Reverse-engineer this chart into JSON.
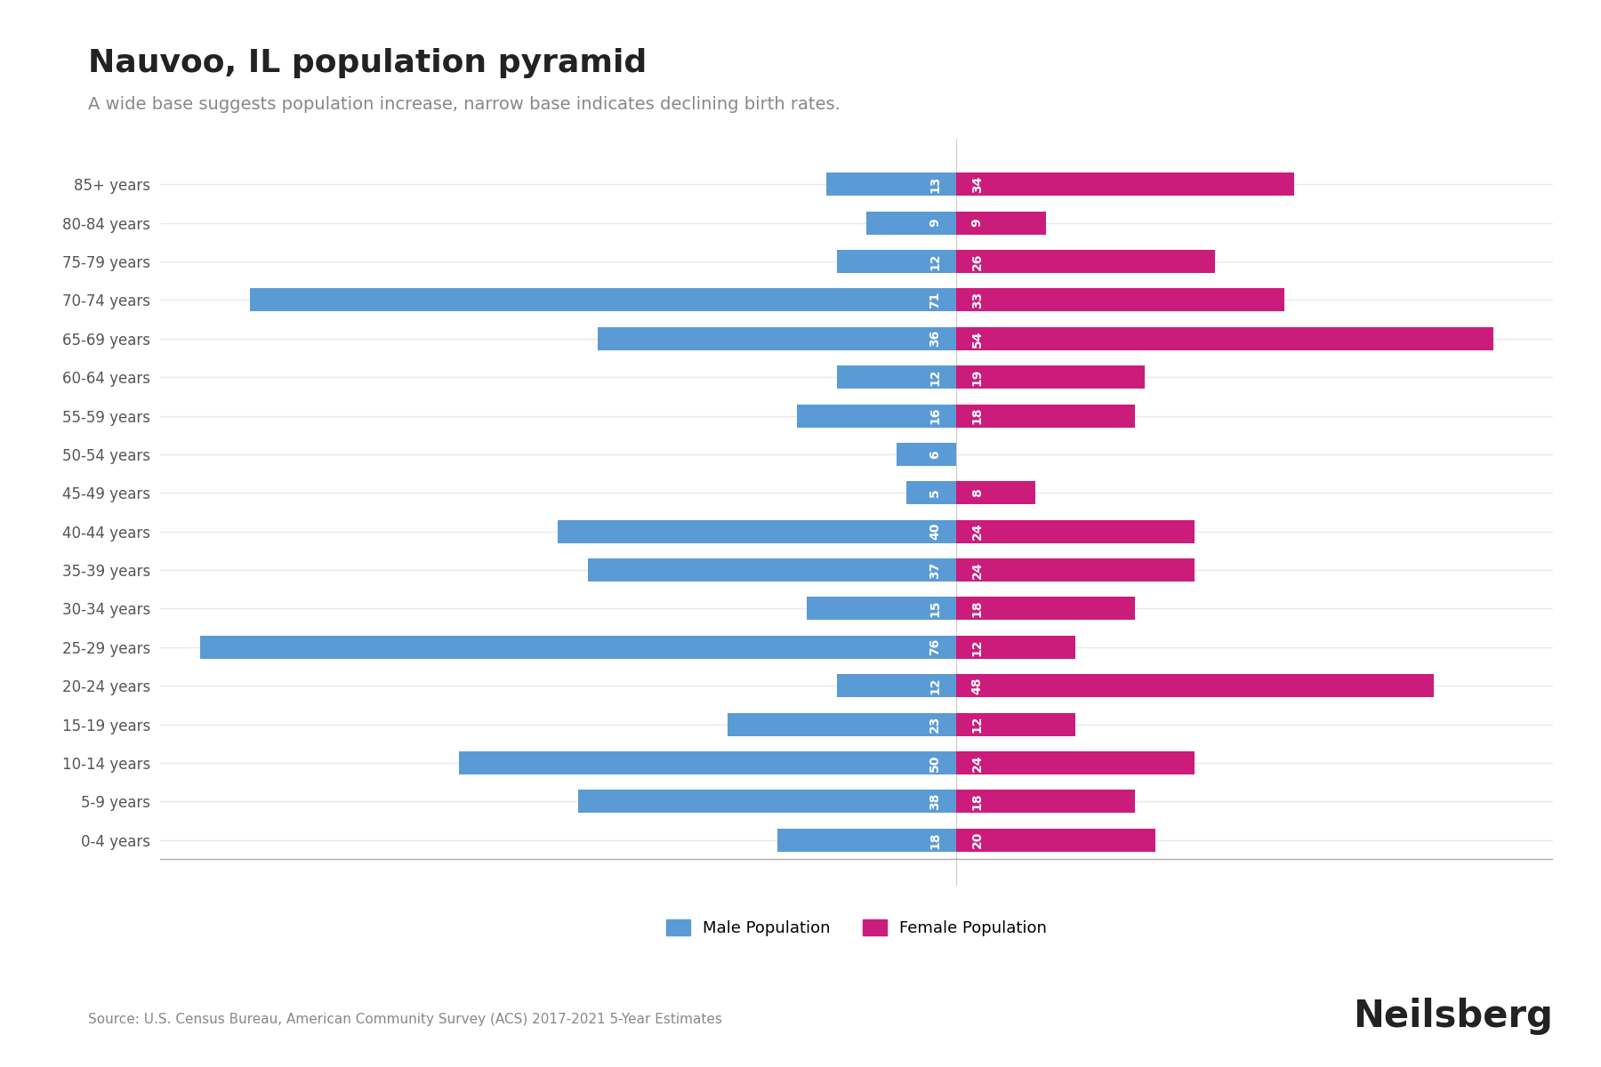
{
  "title": "Nauvoo, IL population pyramid",
  "subtitle": "A wide base suggests population increase, narrow base indicates declining birth rates.",
  "source": "Source: U.S. Census Bureau, American Community Survey (ACS) 2017-2021 5-Year Estimates",
  "watermark": "Neilsberg",
  "age_groups": [
    "0-4 years",
    "5-9 years",
    "10-14 years",
    "15-19 years",
    "20-24 years",
    "25-29 years",
    "30-34 years",
    "35-39 years",
    "40-44 years",
    "45-49 years",
    "50-54 years",
    "55-59 years",
    "60-64 years",
    "65-69 years",
    "70-74 years",
    "75-79 years",
    "80-84 years",
    "85+ years"
  ],
  "male": [
    18,
    38,
    50,
    23,
    12,
    76,
    15,
    37,
    40,
    5,
    6,
    16,
    12,
    36,
    71,
    12,
    9,
    13
  ],
  "female": [
    20,
    18,
    24,
    12,
    48,
    12,
    18,
    24,
    24,
    8,
    0,
    18,
    19,
    54,
    33,
    26,
    9,
    34
  ],
  "male_color": "#5B9BD5",
  "female_color": "#CC1C7B",
  "background_color": "#FFFFFF",
  "grid_color": "#E8E8F0",
  "label_color": "#555555",
  "title_color": "#222222",
  "subtitle_color": "#888888",
  "bar_label_color": "#FFFFFF",
  "male_xlim": 80,
  "female_xlim": 60,
  "bar_height": 0.6,
  "legend_male": "Male Population",
  "legend_female": "Female Population"
}
